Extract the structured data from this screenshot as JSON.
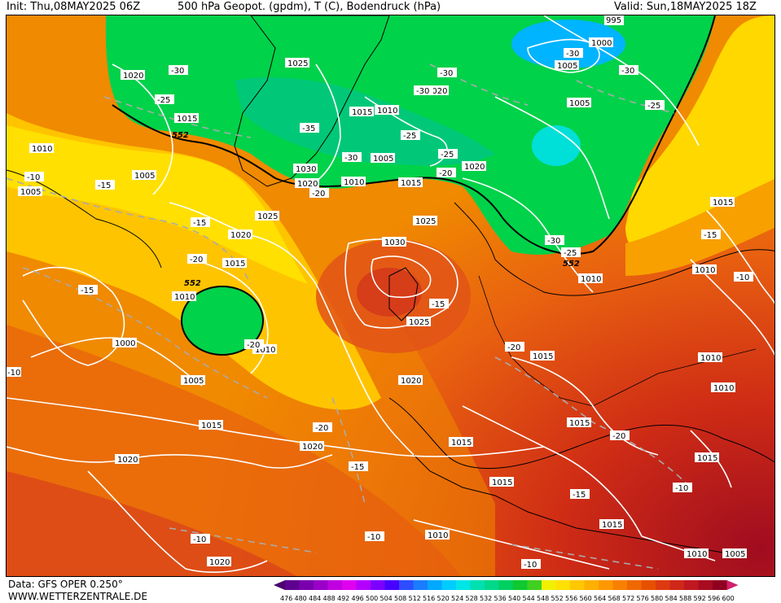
{
  "header": {
    "init": "Init: Thu,08MAY2025 06Z",
    "title": "500 hPa Geopot. (gpdm), T (C), Bodendruck (hPa)",
    "valid": "Valid: Sun,18MAY2025 18Z"
  },
  "footer": {
    "data_source": "Data: GFS OPER 0.250°",
    "website": "WWW.WETTERZENTRALE.DE"
  },
  "colorbar": {
    "ticks": [
      "476",
      "480",
      "484",
      "488",
      "492",
      "496",
      "500",
      "504",
      "508",
      "512",
      "516",
      "520",
      "524",
      "528",
      "532",
      "536",
      "540",
      "544",
      "548",
      "552",
      "556",
      "560",
      "564",
      "568",
      "572",
      "576",
      "580",
      "584",
      "588",
      "592",
      "596",
      "600"
    ],
    "colors": [
      "#4b006e",
      "#5e0090",
      "#7a00ad",
      "#9a00c8",
      "#c000e0",
      "#e000f0",
      "#b400ff",
      "#7d00ff",
      "#4800ff",
      "#2d4dff",
      "#1a7dff",
      "#00a8ff",
      "#00ccff",
      "#00e5e5",
      "#00e0b0",
      "#00d88a",
      "#00d060",
      "#10c830",
      "#40d020",
      "#f0f000",
      "#ffe000",
      "#ffc800",
      "#ffb000",
      "#ff9800",
      "#f88000",
      "#f06800",
      "#e85000",
      "#de3a10",
      "#d02818",
      "#c01820",
      "#a80c20",
      "#900020",
      "#d0206a"
    ]
  },
  "map": {
    "pressure_labels": [
      "1020",
      "1025",
      "1015",
      "1010",
      "1005",
      "1000",
      "995",
      "1030"
    ],
    "temperature_labels": [
      "-10",
      "-15",
      "-20",
      "-25",
      "-30",
      "-35"
    ],
    "geopotential_labels": [
      "552"
    ]
  }
}
